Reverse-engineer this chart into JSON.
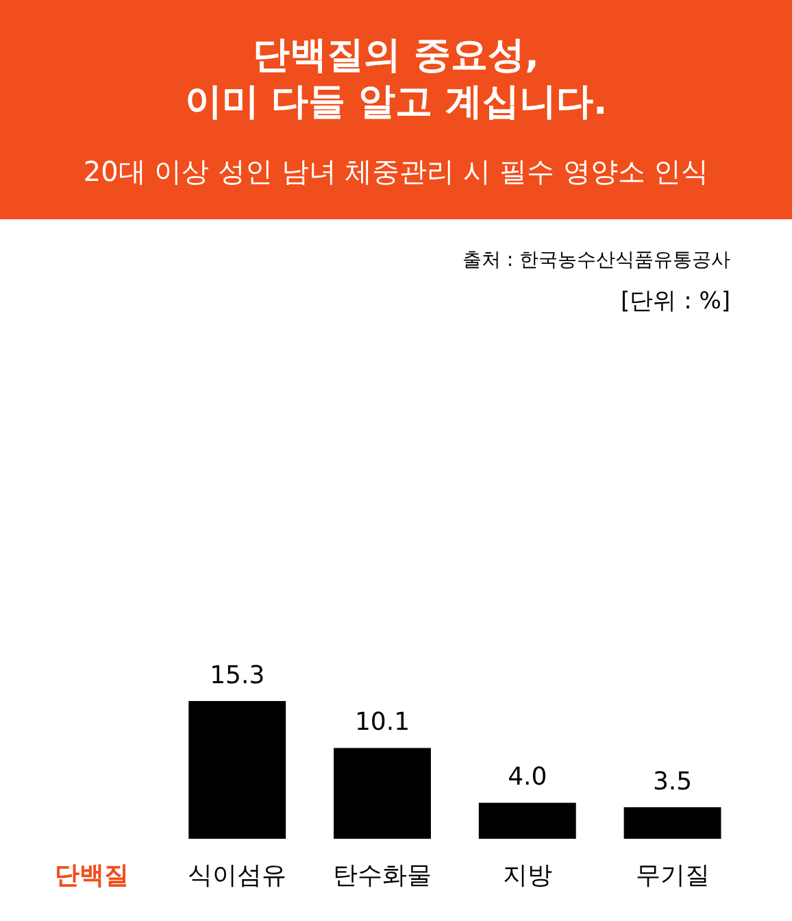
{
  "chart_data": {
    "type": "bar",
    "title": "단백질의 중요성,\n이미 다들 알고 계십니다.",
    "subtitle": "20대 이상 성인 남녀 체중관리 시 필수 영양소 인식",
    "categories": [
      "단백질",
      "식이섬유",
      "탄수화물",
      "지방",
      "무기질"
    ],
    "values": [
      null,
      15.3,
      10.1,
      4.0,
      3.5
    ],
    "colors": [
      "#f04e1c",
      "#000000",
      "#000000",
      "#000000",
      "#000000"
    ],
    "value_labels": [
      null,
      "15.3",
      "10.1",
      "4.0",
      "3.5"
    ],
    "annotations": [
      "출처 : 한국농수산식품유통공사",
      "[단위 : %]"
    ]
  }
}
